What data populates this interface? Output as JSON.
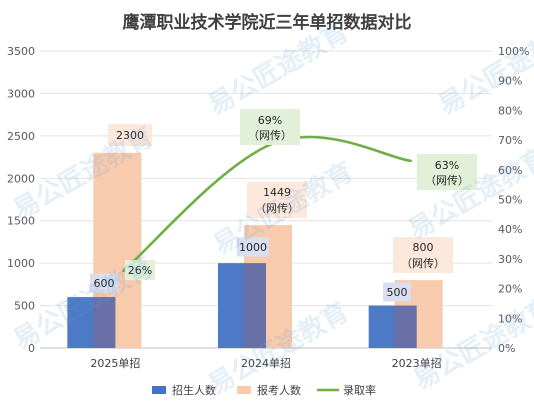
{
  "chart_data": {
    "type": "bar",
    "title": "鹰潭职业技术学院近三年单招数据对比",
    "categories": [
      "2025单招",
      "2024单招",
      "2023单招"
    ],
    "series": [
      {
        "name": "招生人数",
        "type": "bar",
        "axis": "left",
        "color": "#4472C4",
        "values": [
          600,
          1000,
          500
        ]
      },
      {
        "name": "报考人数",
        "type": "bar",
        "axis": "left",
        "color": "#F8CBAD",
        "values": [
          2300,
          1449,
          800
        ]
      },
      {
        "name": "录取率",
        "type": "line",
        "axis": "right",
        "color": "#70AD47",
        "values": [
          26,
          69,
          63
        ]
      }
    ],
    "data_labels": {
      "enrolled": [
        "600",
        "1000",
        "500"
      ],
      "applicants": [
        "2300",
        "1449",
        "800"
      ],
      "applicants_note": [
        "",
        "（网传）",
        "（网传）"
      ],
      "rate": [
        "26%",
        "69%",
        "63%"
      ],
      "rate_note": [
        "",
        "（网传）",
        "（网传）"
      ]
    },
    "y_left": {
      "min": 0,
      "max": 3500,
      "step": 500
    },
    "y_right": {
      "min": 0,
      "max": 100,
      "step": 10,
      "unit": "%"
    },
    "grid": true,
    "legend": {
      "position": "bottom"
    },
    "watermark": "易公匠途教育"
  }
}
